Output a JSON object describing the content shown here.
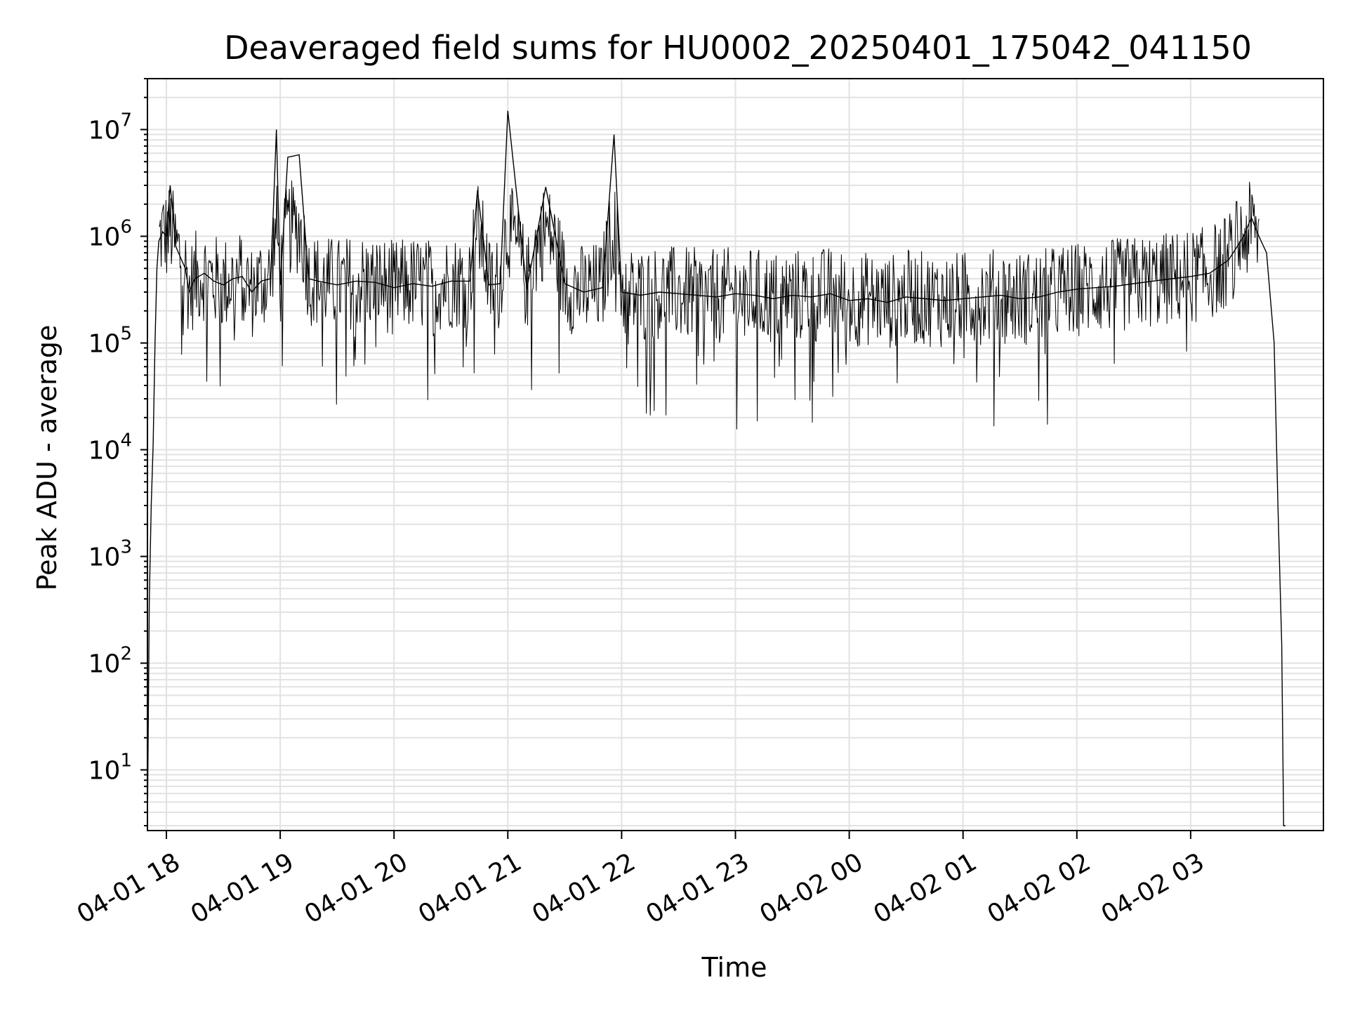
{
  "chart_data": {
    "type": "line",
    "title": "Deaveraged field sums for HU0002_20250401_175042_041150",
    "xlabel": "Time",
    "ylabel": "Peak ADU - average",
    "yscale": "log",
    "grid": true,
    "line_color": "#000000",
    "grid_color": "#e2e2e2",
    "x_tick_labels": [
      "04-01 18",
      "04-01 19",
      "04-01 20",
      "04-01 21",
      "04-01 22",
      "04-01 23",
      "04-02 00",
      "04-02 01",
      "04-02 02",
      "04-02 03"
    ],
    "y_tick_labels": [
      {
        "base": "10",
        "exp": "1"
      },
      {
        "base": "10",
        "exp": "2"
      },
      {
        "base": "10",
        "exp": "3"
      },
      {
        "base": "10",
        "exp": "4"
      },
      {
        "base": "10",
        "exp": "5"
      },
      {
        "base": "10",
        "exp": "6"
      },
      {
        "base": "10",
        "exp": "7"
      }
    ],
    "xlim": [
      "2025-04-01T17:50",
      "2025-04-02T04:10"
    ],
    "ylim": [
      2.7,
      30000000
    ],
    "baseline": 350000,
    "series": [
      {
        "x": [
          "2025-04-01T17:50",
          "2025-04-01T17:51",
          "2025-04-01T17:52",
          "2025-04-01T17:53",
          "2025-04-01T17:54",
          "2025-04-01T17:55",
          "2025-04-01T17:56",
          "2025-04-01T17:58",
          "2025-04-01T18:00",
          "2025-04-01T18:02",
          "2025-04-01T18:05",
          "2025-04-01T18:08",
          "2025-04-01T18:10",
          "2025-04-01T18:12",
          "2025-04-01T18:15",
          "2025-04-01T18:20",
          "2025-04-01T18:25",
          "2025-04-01T18:30",
          "2025-04-01T18:35",
          "2025-04-01T18:40",
          "2025-04-01T18:45",
          "2025-04-01T18:50",
          "2025-04-01T18:55",
          "2025-04-01T18:58",
          "2025-04-01T19:00",
          "2025-04-01T19:04",
          "2025-04-01T19:10",
          "2025-04-01T19:15",
          "2025-04-01T19:20",
          "2025-04-01T19:30",
          "2025-04-01T19:40",
          "2025-04-01T19:50",
          "2025-04-01T20:00",
          "2025-04-01T20:10",
          "2025-04-01T20:20",
          "2025-04-01T20:30",
          "2025-04-01T20:40",
          "2025-04-01T20:44",
          "2025-04-01T20:50",
          "2025-04-01T20:56",
          "2025-04-01T21:00",
          "2025-04-01T21:10",
          "2025-04-01T21:20",
          "2025-04-01T21:30",
          "2025-04-01T21:40",
          "2025-04-01T21:50",
          "2025-04-01T21:56",
          "2025-04-01T22:00",
          "2025-04-01T22:10",
          "2025-04-01T22:20",
          "2025-04-01T22:30",
          "2025-04-01T22:40",
          "2025-04-01T22:50",
          "2025-04-01T23:00",
          "2025-04-01T23:10",
          "2025-04-01T23:20",
          "2025-04-01T23:30",
          "2025-04-01T23:40",
          "2025-04-01T23:50",
          "2025-04-02T00:00",
          "2025-04-02T00:10",
          "2025-04-02T00:20",
          "2025-04-02T00:30",
          "2025-04-02T00:40",
          "2025-04-02T00:50",
          "2025-04-02T01:00",
          "2025-04-02T01:10",
          "2025-04-02T01:20",
          "2025-04-02T01:30",
          "2025-04-02T01:40",
          "2025-04-02T01:50",
          "2025-04-02T02:00",
          "2025-04-02T02:10",
          "2025-04-02T02:20",
          "2025-04-02T02:30",
          "2025-04-02T02:40",
          "2025-04-02T02:50",
          "2025-04-02T03:00",
          "2025-04-02T03:10",
          "2025-04-02T03:20",
          "2025-04-02T03:28",
          "2025-04-02T03:32",
          "2025-04-02T03:36",
          "2025-04-02T03:40",
          "2025-04-02T03:44",
          "2025-04-02T03:46",
          "2025-04-02T03:48",
          "2025-04-02T03:49",
          "2025-04-02T03:50"
        ],
        "y": [
          3,
          400,
          3000,
          11000,
          100000,
          500000,
          900000,
          1100000,
          1000000,
          3000000,
          800000,
          600000,
          500000,
          300000,
          400000,
          450000,
          380000,
          350000,
          400000,
          420000,
          300000,
          380000,
          400000,
          10000000,
          350000,
          5500000,
          5800000,
          400000,
          380000,
          350000,
          380000,
          370000,
          330000,
          360000,
          340000,
          380000,
          380000,
          2700000,
          350000,
          360000,
          15000000,
          320000,
          2900000,
          360000,
          300000,
          330000,
          9000000,
          300000,
          280000,
          300000,
          290000,
          280000,
          270000,
          290000,
          280000,
          260000,
          280000,
          270000,
          290000,
          250000,
          260000,
          240000,
          270000,
          260000,
          250000,
          260000,
          270000,
          280000,
          260000,
          270000,
          300000,
          320000,
          330000,
          340000,
          360000,
          380000,
          400000,
          420000,
          450000,
          600000,
          1000000,
          1500000,
          1000000,
          700000,
          100000,
          3000,
          150,
          3,
          3
        ]
      }
    ]
  }
}
